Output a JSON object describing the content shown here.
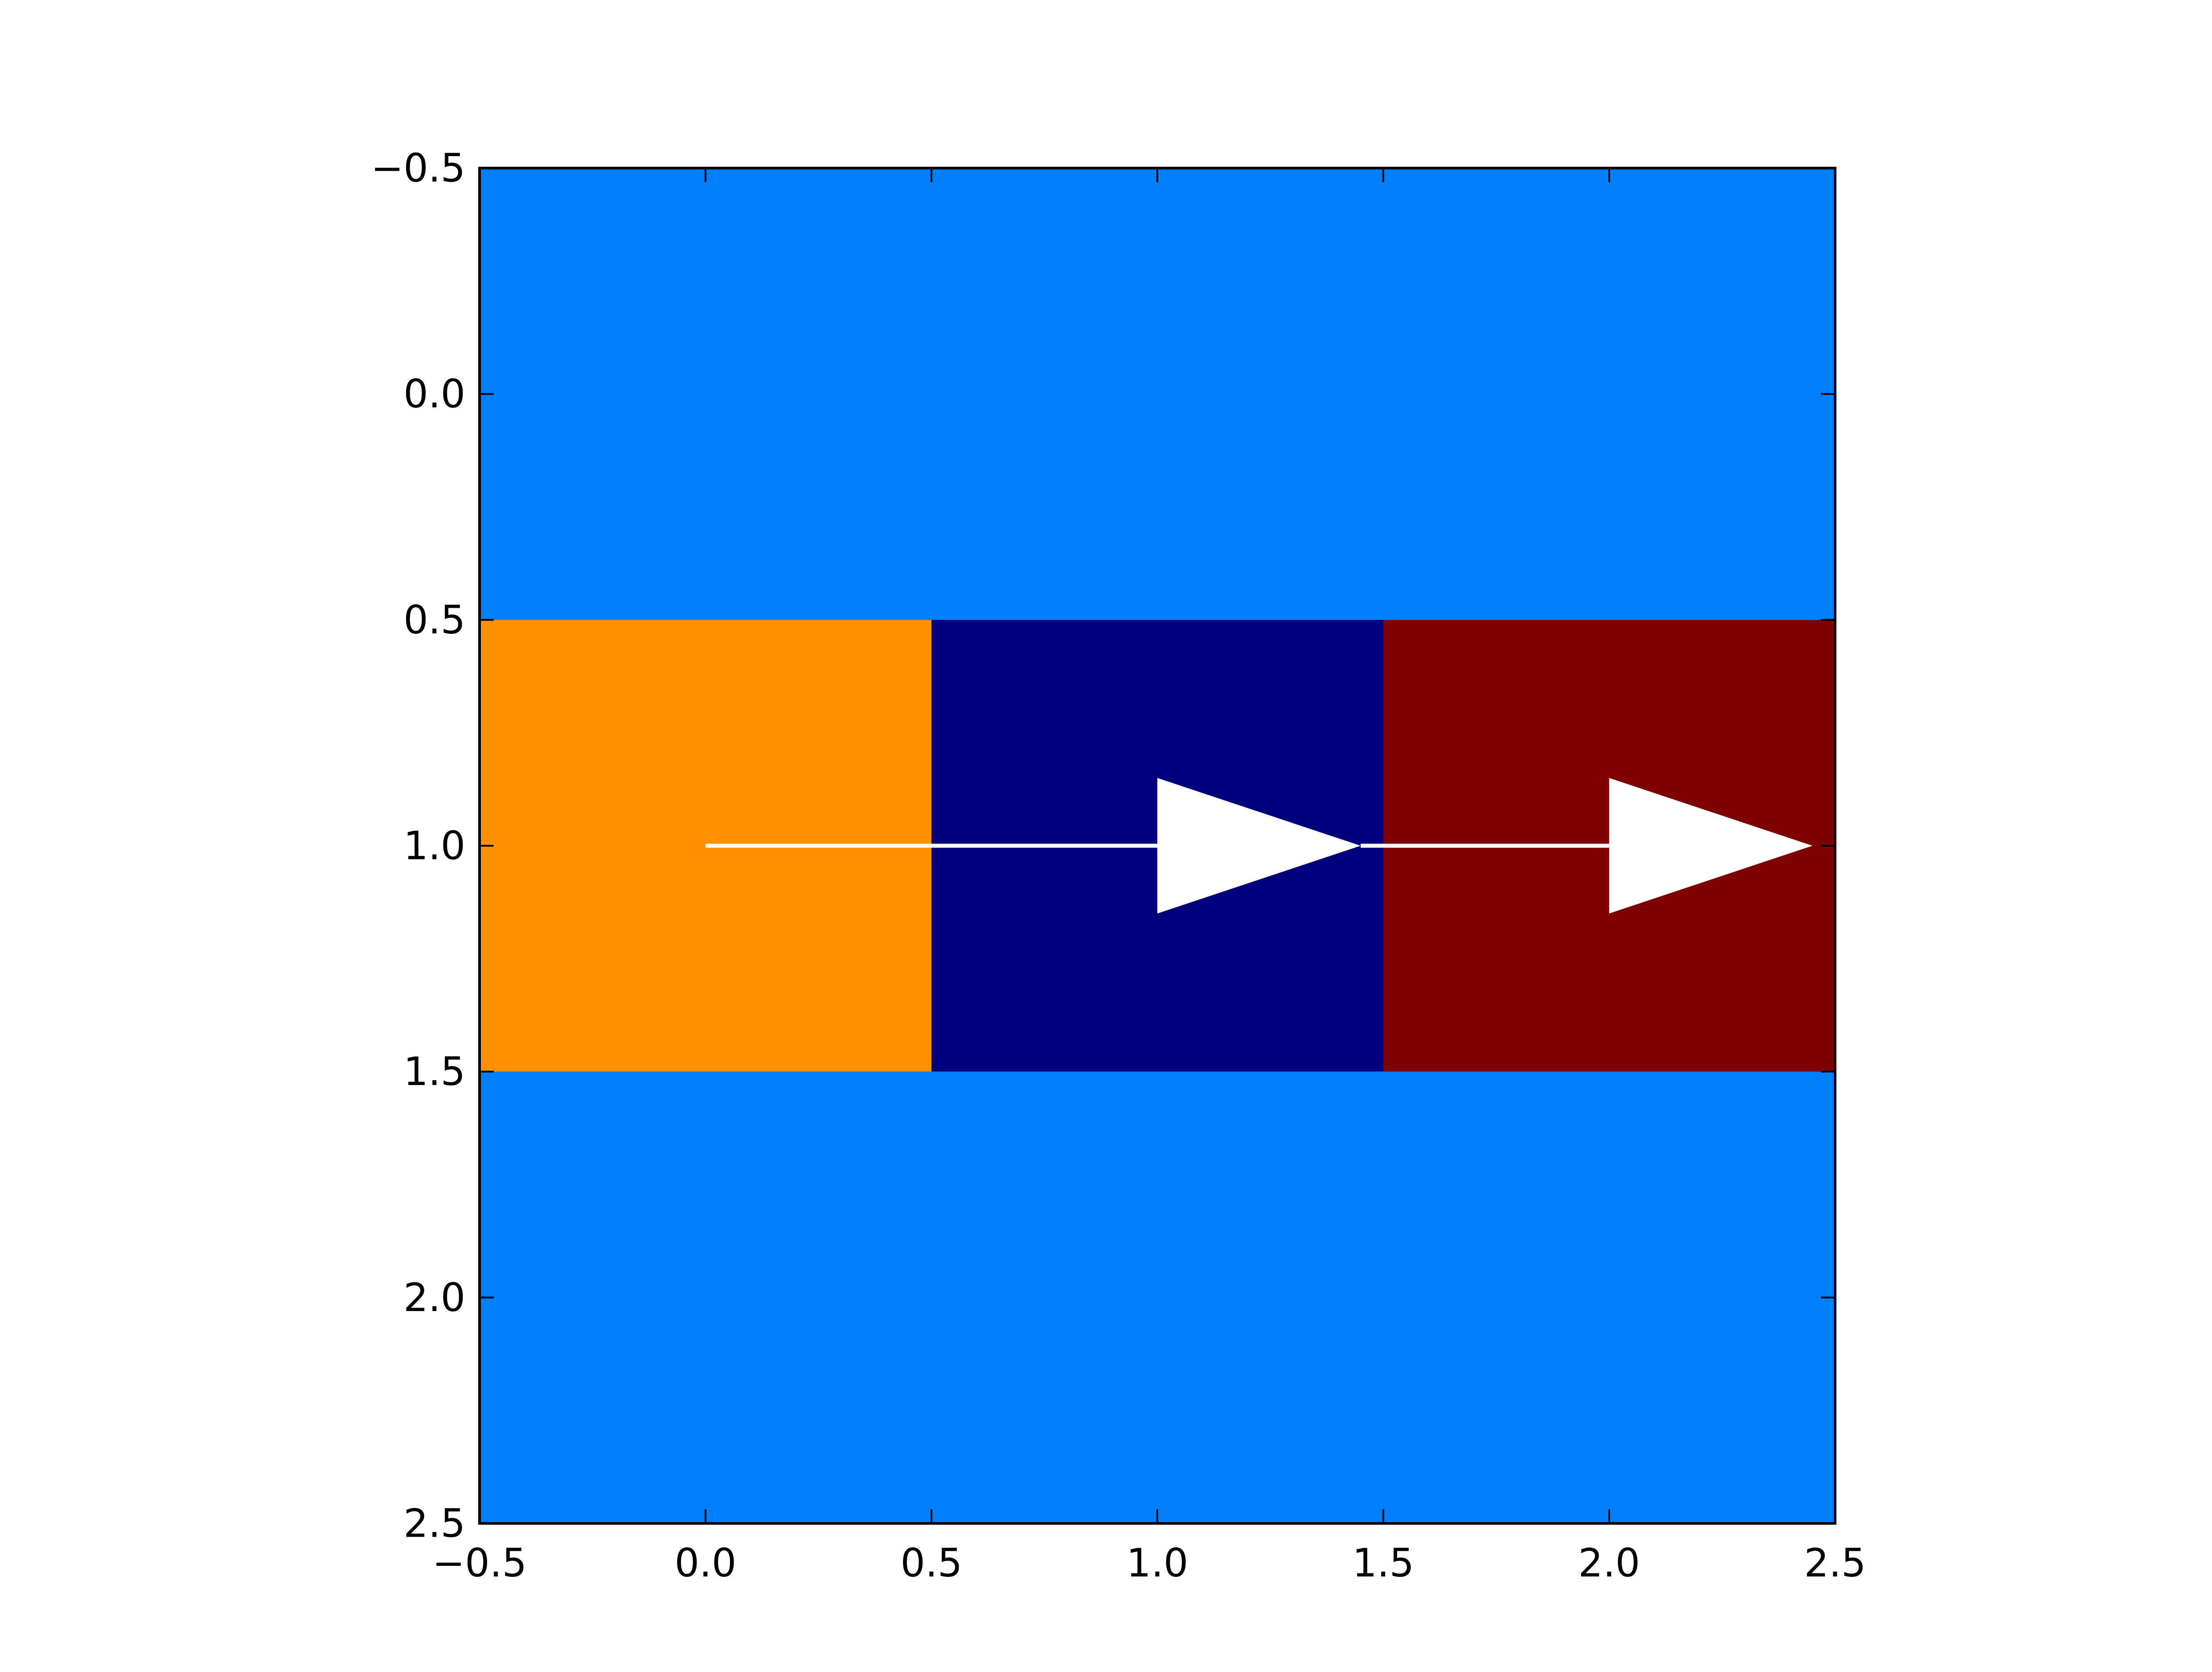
{
  "chart_data": {
    "type": "heatmap",
    "title": "",
    "xlabel": "",
    "ylabel": "",
    "xlim": [
      -0.5,
      2.5
    ],
    "ylim": [
      2.5,
      -0.5
    ],
    "y_inverted": true,
    "grid": false,
    "rows": 3,
    "cols": 3,
    "cell_colors": [
      [
        "#007fff",
        "#007fff",
        "#007fff"
      ],
      [
        "#ff9100",
        "#00007f",
        "#7f0000"
      ],
      [
        "#007fff",
        "#007fff",
        "#007fff"
      ]
    ],
    "x_ticks": [
      -0.5,
      0.0,
      0.5,
      1.0,
      1.5,
      2.0,
      2.5
    ],
    "x_tick_labels": [
      "−0.5",
      "0.0",
      "0.5",
      "1.0",
      "1.5",
      "2.0",
      "2.5"
    ],
    "y_ticks": [
      -0.5,
      0.0,
      0.5,
      1.0,
      1.5,
      2.0,
      2.5
    ],
    "y_tick_labels": [
      "−0.5",
      "0.0",
      "0.5",
      "1.0",
      "1.5",
      "2.0",
      "2.5"
    ],
    "arrows": [
      {
        "x_start": 0.0,
        "y_start": 1.0,
        "dx": 1.45,
        "dy": 0.0,
        "head_length": 0.45,
        "head_width": 0.3,
        "color": "#ffffff"
      },
      {
        "x_start": 1.45,
        "y_start": 1.0,
        "dx": 1.0,
        "dy": 0.0,
        "head_length": 0.45,
        "head_width": 0.3,
        "color": "#ffffff"
      }
    ]
  }
}
